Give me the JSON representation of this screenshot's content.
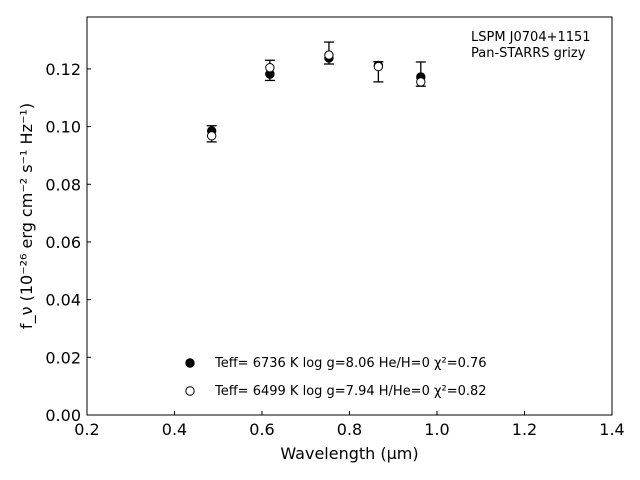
{
  "chart_data": {
    "type": "scatter",
    "xlabel": "Wavelength (μm)",
    "ylabel": "f_ν (10⁻²⁶ erg cm⁻² s⁻¹ Hz⁻¹)",
    "xlim": [
      0.2,
      1.4
    ],
    "ylim": [
      0.0,
      0.138
    ],
    "xticks": [
      "0.2",
      "0.4",
      "0.6",
      "0.8",
      "1.0",
      "1.2",
      "1.4"
    ],
    "yticks": [
      "0.00",
      "0.02",
      "0.04",
      "0.06",
      "0.08",
      "0.10",
      "0.12"
    ],
    "grid": false,
    "annotation": [
      "LSPM J0704+1151",
      "Pan-STARRS grizy"
    ],
    "observed": {
      "x": [
        0.485,
        0.618,
        0.753,
        0.866,
        0.963
      ],
      "y": [
        0.0975,
        0.1195,
        0.1255,
        0.119,
        0.1182
      ],
      "yerr": [
        0.0028,
        0.0035,
        0.0038,
        0.0035,
        0.0042
      ]
    },
    "series": [
      {
        "name": "Teff=  6736 K  log g=8.06  He/H=0  χ²=0.76",
        "marker": "filled-circle",
        "x": [
          0.485,
          0.618,
          0.753,
          0.866,
          0.963
        ],
        "y": [
          0.0985,
          0.1182,
          0.1238,
          0.1212,
          0.1172
        ]
      },
      {
        "name": "Teff=  6499 K  log g=7.94  H/He=0  χ²=0.82",
        "marker": "open-circle",
        "x": [
          0.485,
          0.618,
          0.753,
          0.866,
          0.963
        ],
        "y": [
          0.0968,
          0.1204,
          0.1248,
          0.1208,
          0.1155
        ]
      }
    ],
    "legend_placement": "bottom-center"
  }
}
